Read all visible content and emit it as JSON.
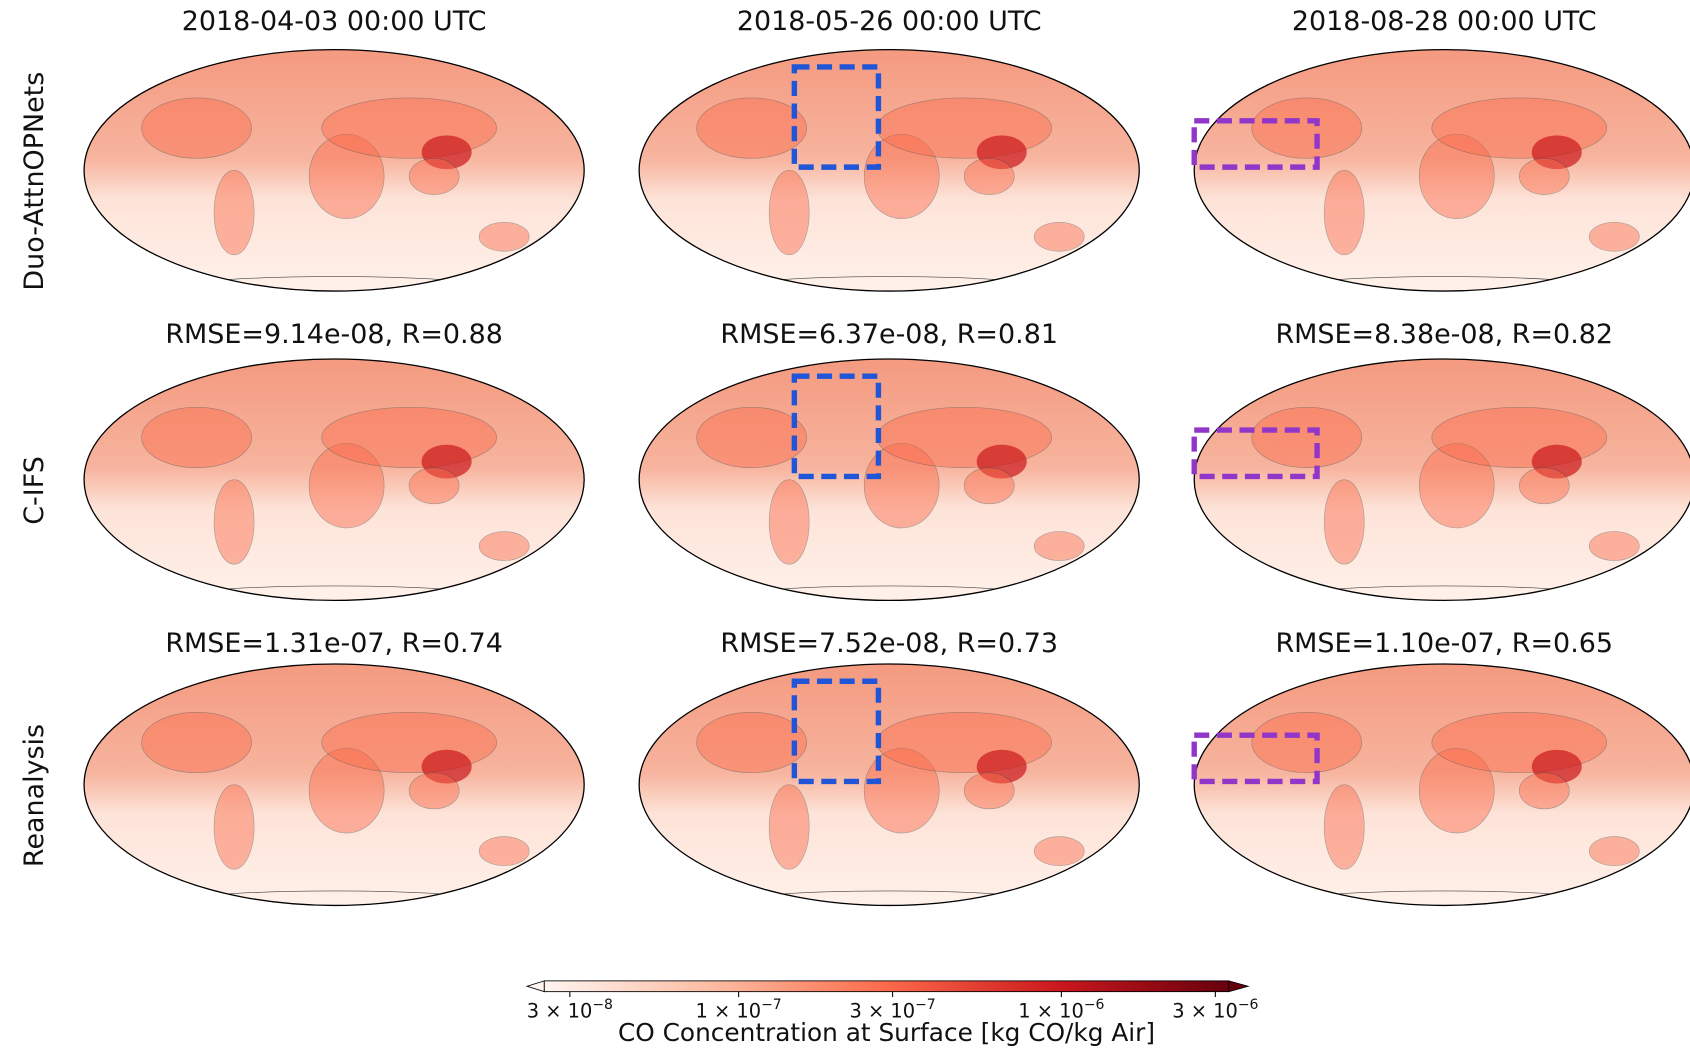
{
  "columns": [
    "2018-04-03 00:00 UTC",
    "2018-05-26 00:00 UTC",
    "2018-08-28 00:00 UTC"
  ],
  "rows": [
    "Duo-AttnOPNets",
    "C-IFS",
    "Reanalysis"
  ],
  "metrics": [
    [
      "RMSE=9.14e-08, R=0.88",
      "RMSE=6.37e-08, R=0.81",
      "RMSE=8.38e-08, R=0.82"
    ],
    [
      "RMSE=1.31e-07, R=0.74",
      "RMSE=7.52e-08, R=0.73",
      "RMSE=1.10e-07, R=0.65"
    ]
  ],
  "colorbar": {
    "label": "CO Concentration at Surface [kg CO/kg Air]",
    "scale": "log",
    "lim": [
      2.5e-08,
      3.3e-06
    ],
    "ticks": [
      {
        "value": 3e-08,
        "label": "3 × 10−8"
      },
      {
        "value": 1e-07,
        "label": "1 × 10−7"
      },
      {
        "value": 3e-07,
        "label": "3 × 10−7"
      },
      {
        "value": 1e-06,
        "label": "1 × 10−6"
      },
      {
        "value": 3e-06,
        "label": "3 × 10−6"
      }
    ],
    "colors": [
      "#fff5f0",
      "#fcbba1",
      "#fb6a4a",
      "#cb181d",
      "#67000d"
    ]
  }
}
